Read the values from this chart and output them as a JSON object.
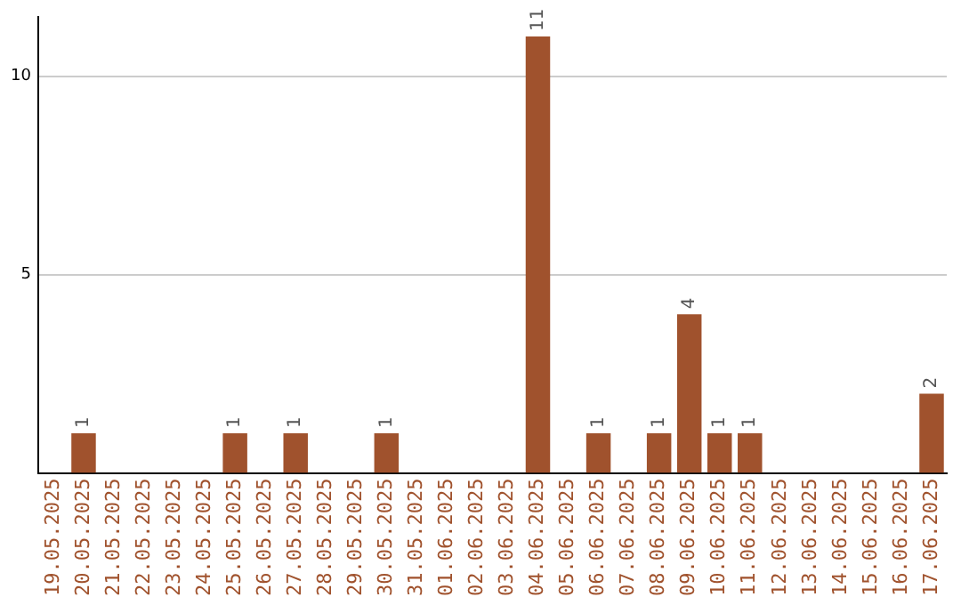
{
  "chart_data": {
    "type": "bar",
    "categories": [
      "19.05.2025",
      "20.05.2025",
      "21.05.2025",
      "22.05.2025",
      "23.05.2025",
      "24.05.2025",
      "25.05.2025",
      "26.05.2025",
      "27.05.2025",
      "28.05.2025",
      "29.05.2025",
      "30.05.2025",
      "31.05.2025",
      "01.06.2025",
      "02.06.2025",
      "03.06.2025",
      "04.06.2025",
      "05.06.2025",
      "06.06.2025",
      "07.06.2025",
      "08.06.2025",
      "09.06.2025",
      "10.06.2025",
      "11.06.2025",
      "12.06.2025",
      "13.06.2025",
      "14.06.2025",
      "15.06.2025",
      "16.06.2025",
      "17.06.2025"
    ],
    "values": [
      0,
      1,
      0,
      0,
      0,
      0,
      1,
      0,
      1,
      0,
      0,
      1,
      0,
      0,
      0,
      0,
      11,
      0,
      1,
      0,
      1,
      4,
      1,
      1,
      0,
      0,
      0,
      0,
      0,
      2
    ],
    "value_labels": [
      null,
      "1",
      null,
      null,
      null,
      null,
      "1",
      null,
      "1",
      null,
      null,
      "1",
      null,
      null,
      null,
      null,
      "11",
      null,
      "1",
      null,
      "1",
      "4",
      "1",
      "1",
      null,
      null,
      null,
      null,
      null,
      "2"
    ],
    "color": "#a0522d",
    "ylim": [
      0,
      11.5
    ],
    "yticks": [
      5,
      10
    ],
    "grid": "y",
    "legend": false
  }
}
